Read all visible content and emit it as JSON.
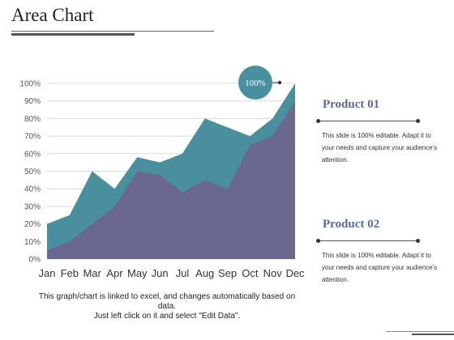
{
  "slide": {
    "title": "Area Chart",
    "caption_line1": "This graph/chart is linked to excel, and changes automatically based on data.",
    "caption_line2": "Just left click on it and select \"Edit Data\".",
    "badge_label": "100%"
  },
  "legend": [
    {
      "name": "Product 01",
      "description": "This slide is 100% editable. Adapt it to your needs and capture your audience's attention."
    },
    {
      "name": "Product 02",
      "description": "This slide is 100% editable. Adapt it to your needs and capture your audience's attention."
    }
  ],
  "colors": {
    "product_01": "#4a8f9e",
    "product_02": "#6a6890",
    "badge": "#4a8f9e",
    "grid": "#d9d9d9"
  },
  "chart_data": {
    "type": "area",
    "categories": [
      "Jan",
      "Feb",
      "Mar",
      "Apr",
      "May",
      "Jun",
      "Jul",
      "Aug",
      "Sep",
      "Oct",
      "Nov",
      "Dec"
    ],
    "series": [
      {
        "name": "Product 01",
        "values": [
          20,
          25,
          50,
          40,
          58,
          55,
          60,
          80,
          75,
          70,
          80,
          100
        ]
      },
      {
        "name": "Product 02",
        "values": [
          5,
          10,
          20,
          30,
          50,
          48,
          38,
          45,
          40,
          65,
          70,
          90
        ]
      }
    ],
    "y_ticks": [
      "0%",
      "10%",
      "20%",
      "30%",
      "40%",
      "50%",
      "60%",
      "70%",
      "80%",
      "90%",
      "100%"
    ],
    "ylim": [
      0,
      100
    ],
    "grid": true,
    "legend_position": "right"
  }
}
